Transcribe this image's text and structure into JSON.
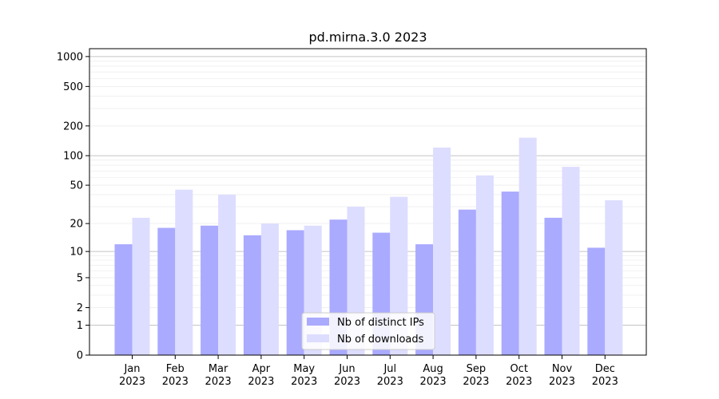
{
  "chart_data": {
    "type": "bar",
    "title": "pd.mirna.3.0 2023",
    "xlabel": "",
    "ylabel": "",
    "yscale": "symlog",
    "ylim": [
      0,
      1200
    ],
    "y_ticks": [
      0,
      1,
      2,
      5,
      10,
      20,
      50,
      100,
      200,
      500,
      1000
    ],
    "y_tick_labels": [
      "0",
      "1",
      "2",
      "5",
      "10",
      "20",
      "50",
      "100",
      "200",
      "500",
      "1000"
    ],
    "grid": true,
    "legend_position": "bottom-center",
    "categories": [
      {
        "month": "Jan",
        "year": "2023"
      },
      {
        "month": "Feb",
        "year": "2023"
      },
      {
        "month": "Mar",
        "year": "2023"
      },
      {
        "month": "Apr",
        "year": "2023"
      },
      {
        "month": "May",
        "year": "2023"
      },
      {
        "month": "Jun",
        "year": "2023"
      },
      {
        "month": "Jul",
        "year": "2023"
      },
      {
        "month": "Aug",
        "year": "2023"
      },
      {
        "month": "Sep",
        "year": "2023"
      },
      {
        "month": "Oct",
        "year": "2023"
      },
      {
        "month": "Nov",
        "year": "2023"
      },
      {
        "month": "Dec",
        "year": "2023"
      }
    ],
    "series": [
      {
        "name": "Nb of distinct IPs",
        "color": "#aaaaff",
        "values": [
          12,
          18,
          19,
          15,
          17,
          22,
          16,
          12,
          28,
          43,
          23,
          11
        ]
      },
      {
        "name": "Nb of downloads",
        "color": "#ddddff",
        "values": [
          23,
          45,
          40,
          20,
          19,
          30,
          38,
          121,
          63,
          152,
          77,
          35
        ]
      }
    ]
  }
}
